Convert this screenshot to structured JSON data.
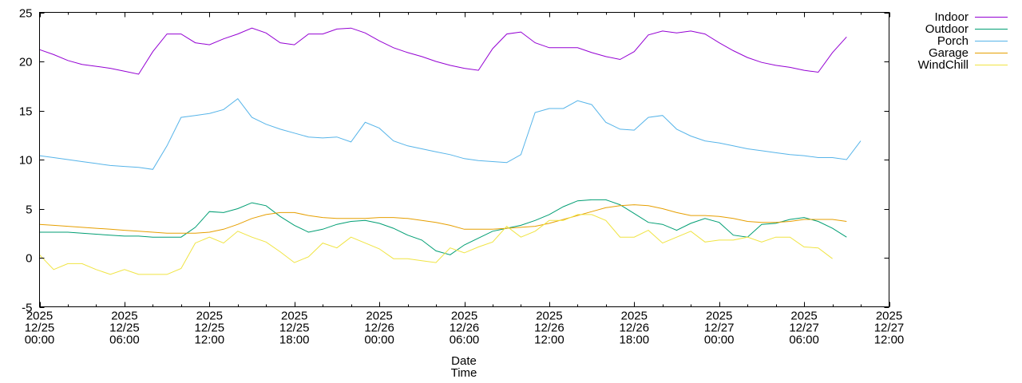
{
  "chart_data": {
    "type": "line",
    "title": "",
    "xlabel": "Date\nTime",
    "xlabel_lines": [
      "Date",
      "Time"
    ],
    "ylabel": "",
    "ylim": [
      -5,
      25
    ],
    "yticks": [
      -5,
      0,
      5,
      10,
      15,
      20,
      25
    ],
    "x_start": "2025-12-25 00:00",
    "x_step_hours": 1,
    "x_range_hours": [
      0,
      60
    ],
    "xticks": [
      {
        "hour": 0,
        "lines": [
          "2025",
          "12/25",
          "00:00"
        ]
      },
      {
        "hour": 6,
        "lines": [
          "2025",
          "12/25",
          "06:00"
        ]
      },
      {
        "hour": 12,
        "lines": [
          "2025",
          "12/25",
          "12:00"
        ]
      },
      {
        "hour": 18,
        "lines": [
          "2025",
          "12/25",
          "18:00"
        ]
      },
      {
        "hour": 24,
        "lines": [
          "2025",
          "12/26",
          "00:00"
        ]
      },
      {
        "hour": 30,
        "lines": [
          "2025",
          "12/26",
          "06:00"
        ]
      },
      {
        "hour": 36,
        "lines": [
          "2025",
          "12/26",
          "12:00"
        ]
      },
      {
        "hour": 42,
        "lines": [
          "2025",
          "12/26",
          "18:00"
        ]
      },
      {
        "hour": 48,
        "lines": [
          "2025",
          "12/27",
          "00:00"
        ]
      },
      {
        "hour": 54,
        "lines": [
          "2025",
          "12/27",
          "06:00"
        ]
      },
      {
        "hour": 60,
        "lines": [
          "2025",
          "12/27",
          "12:00"
        ]
      }
    ],
    "grid": false,
    "legend_position": "outside-top-right",
    "series": [
      {
        "name": "Indoor",
        "color": "#9400d3",
        "values": [
          21.2,
          20.7,
          20.1,
          19.7,
          19.5,
          19.3,
          19.0,
          18.7,
          21.0,
          22.8,
          22.8,
          21.9,
          21.7,
          22.3,
          22.8,
          23.4,
          22.9,
          21.9,
          21.7,
          22.8,
          22.8,
          23.3,
          23.4,
          22.9,
          22.1,
          21.4,
          20.9,
          20.5,
          20.0,
          19.6,
          19.3,
          19.1,
          21.3,
          22.8,
          23.0,
          21.9,
          21.4,
          21.4,
          21.4,
          20.9,
          20.5,
          20.2,
          21.0,
          22.7,
          23.1,
          22.9,
          23.1,
          22.8,
          21.9,
          21.1,
          20.4,
          19.9,
          19.6,
          19.4,
          19.1,
          18.9,
          20.9,
          22.5
        ]
      },
      {
        "name": "Outdoor",
        "color": "#009e73",
        "values": [
          2.6,
          2.6,
          2.6,
          2.5,
          2.4,
          2.3,
          2.2,
          2.2,
          2.1,
          2.1,
          2.1,
          3.1,
          4.7,
          4.6,
          5.0,
          5.6,
          5.3,
          4.2,
          3.3,
          2.6,
          2.9,
          3.4,
          3.7,
          3.8,
          3.5,
          3.0,
          2.3,
          1.8,
          0.7,
          0.3,
          1.3,
          2.0,
          2.7,
          3.0,
          3.3,
          3.8,
          4.4,
          5.2,
          5.8,
          5.9,
          5.9,
          5.4,
          4.5,
          3.6,
          3.4,
          2.8,
          3.5,
          4.0,
          3.6,
          2.3,
          2.1,
          3.4,
          3.5,
          3.9,
          4.1,
          3.7,
          3.0,
          2.1
        ]
      },
      {
        "name": "Porch",
        "color": "#56b4e9",
        "values": [
          10.4,
          10.2,
          10.0,
          9.8,
          9.6,
          9.4,
          9.3,
          9.2,
          9.0,
          11.4,
          14.3,
          14.5,
          14.7,
          15.1,
          16.2,
          14.3,
          13.6,
          13.1,
          12.7,
          12.3,
          12.2,
          12.3,
          11.8,
          13.8,
          13.2,
          11.9,
          11.4,
          11.1,
          10.8,
          10.5,
          10.1,
          9.9,
          9.8,
          9.7,
          10.5,
          14.8,
          15.2,
          15.2,
          16.0,
          15.6,
          13.8,
          13.1,
          13.0,
          14.3,
          14.5,
          13.1,
          12.4,
          11.9,
          11.7,
          11.4,
          11.1,
          10.9,
          10.7,
          10.5,
          10.4,
          10.2,
          10.2,
          10.0,
          11.9
        ]
      },
      {
        "name": "Garage",
        "color": "#e69f00",
        "values": [
          3.4,
          3.3,
          3.2,
          3.1,
          3.0,
          2.9,
          2.8,
          2.7,
          2.6,
          2.5,
          2.5,
          2.5,
          2.6,
          2.9,
          3.4,
          4.0,
          4.4,
          4.6,
          4.6,
          4.3,
          4.1,
          4.0,
          4.0,
          4.0,
          4.1,
          4.1,
          4.0,
          3.8,
          3.6,
          3.3,
          2.9,
          2.9,
          2.9,
          3.0,
          3.1,
          3.2,
          3.5,
          3.9,
          4.3,
          4.7,
          5.1,
          5.3,
          5.4,
          5.3,
          5.0,
          4.6,
          4.3,
          4.3,
          4.2,
          4.0,
          3.7,
          3.6,
          3.6,
          3.7,
          3.9,
          3.9,
          3.9,
          3.7
        ]
      },
      {
        "name": "WindChill",
        "color": "#f0e442",
        "values": [
          0.3,
          -1.2,
          -0.6,
          -0.6,
          -1.2,
          -1.7,
          -1.2,
          -1.7,
          -1.7,
          -1.7,
          -1.1,
          1.5,
          2.1,
          1.5,
          2.7,
          2.1,
          1.6,
          0.6,
          -0.5,
          0.1,
          1.5,
          1.0,
          2.1,
          1.5,
          0.9,
          -0.1,
          -0.1,
          -0.3,
          -0.5,
          1.0,
          0.5,
          1.1,
          1.6,
          3.2,
          2.1,
          2.7,
          3.8,
          3.8,
          4.4,
          4.4,
          3.8,
          2.1,
          2.1,
          2.8,
          1.5,
          2.1,
          2.7,
          1.6,
          1.8,
          1.8,
          2.1,
          1.6,
          2.1,
          2.1,
          1.1,
          1.0,
          -0.1
        ]
      }
    ]
  }
}
